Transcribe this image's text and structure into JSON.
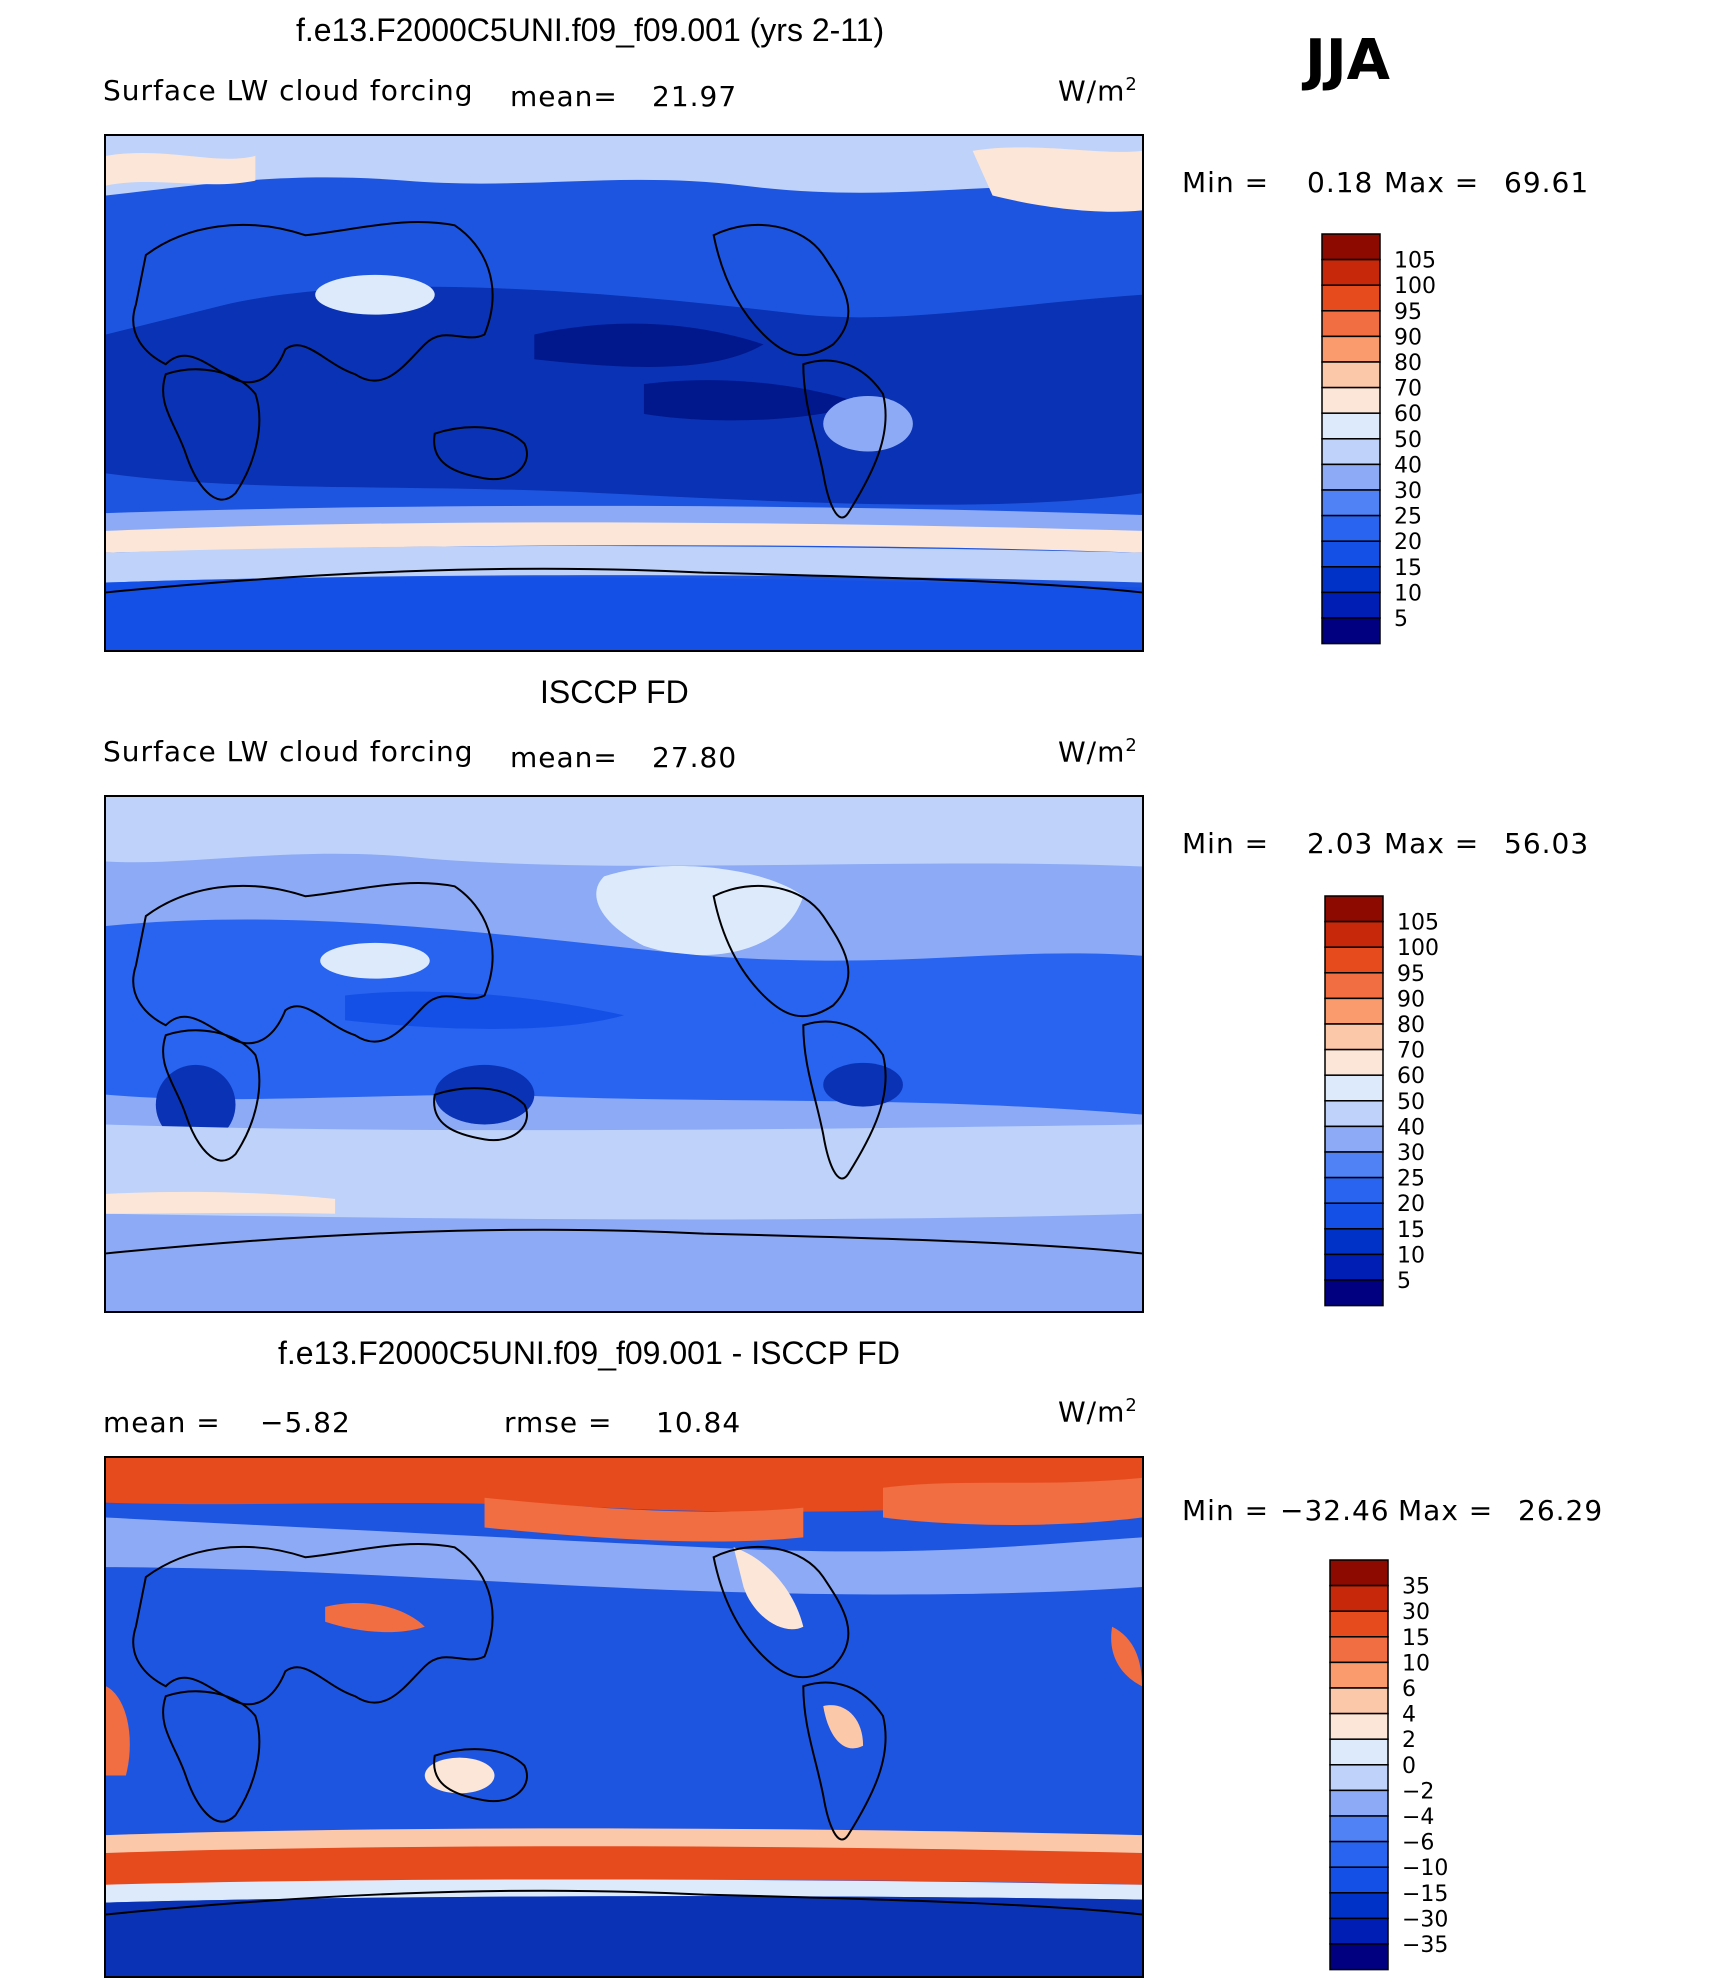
{
  "season": "JJA",
  "units_sup": "2",
  "panels": [
    {
      "title": "f.e13.F2000C5UNI.f09_f09.001 (yrs 2-11)",
      "variable": "Surface LW cloud forcing",
      "mean_label": "mean=",
      "mean": "21.97",
      "units": "W/m",
      "min_label": "Min =",
      "min": "0.18",
      "max_label": "Max =",
      "max": "69.61"
    },
    {
      "title": "ISCCP FD",
      "variable": "Surface LW cloud forcing",
      "mean_label": "mean=",
      "mean": "27.80",
      "units": "W/m",
      "min_label": "Min =",
      "min": "2.03",
      "max_label": "Max =",
      "max": "56.03"
    },
    {
      "title": "f.e13.F2000C5UNI.f09_f09.001 - ISCCP FD",
      "mean_label": "mean =",
      "mean": "−5.82",
      "rmse_label": "rmse =",
      "rmse": "10.84",
      "units": "W/m",
      "min_label": "Min =",
      "min": "−32.46",
      "max_label": "Max =",
      "max": "26.29"
    }
  ],
  "chart_data": [
    {
      "type": "heatmap",
      "title": "f.e13.F2000C5UNI.f09_f09.001 (yrs 2-11)",
      "subtitle": "Surface LW cloud forcing",
      "units": "W/m2",
      "mean": 21.97,
      "min": 0.18,
      "max": 69.61,
      "levels": [
        5,
        10,
        15,
        20,
        25,
        30,
        40,
        50,
        60,
        70,
        80,
        90,
        95,
        100,
        105
      ],
      "colors": [
        "#000080",
        "#001eb4",
        "#0032c8",
        "#1450e6",
        "#2864f0",
        "#5082f5",
        "#8caaf5",
        "#bed2fa",
        "#dceafc",
        "#fce6d7",
        "#fcc8aa",
        "#fa9b6e",
        "#f06e41",
        "#e64b1e",
        "#c8280a",
        "#8c0a00"
      ]
    },
    {
      "type": "heatmap",
      "title": "ISCCP FD",
      "subtitle": "Surface LW cloud forcing",
      "units": "W/m2",
      "mean": 27.8,
      "min": 2.03,
      "max": 56.03,
      "levels": [
        5,
        10,
        15,
        20,
        25,
        30,
        40,
        50,
        60,
        70,
        80,
        90,
        95,
        100,
        105
      ],
      "colors": [
        "#000080",
        "#001eb4",
        "#0032c8",
        "#1450e6",
        "#2864f0",
        "#5082f5",
        "#8caaf5",
        "#bed2fa",
        "#dceafc",
        "#fce6d7",
        "#fcc8aa",
        "#fa9b6e",
        "#f06e41",
        "#e64b1e",
        "#c8280a",
        "#8c0a00"
      ]
    },
    {
      "type": "heatmap",
      "title": "f.e13.F2000C5UNI.f09_f09.001 - ISCCP FD",
      "units": "W/m2",
      "mean": -5.82,
      "rmse": 10.84,
      "min": -32.46,
      "max": 26.29,
      "levels": [
        -35,
        -30,
        -15,
        -10,
        -6,
        -4,
        -2,
        0,
        2,
        4,
        6,
        10,
        15,
        30,
        35
      ],
      "level_labels": [
        "−35",
        "−30",
        "−15",
        "−10",
        "−6",
        "−4",
        "−2",
        "0",
        "2",
        "4",
        "6",
        "10",
        "15",
        "30",
        "35"
      ],
      "colors": [
        "#000080",
        "#001eb4",
        "#0032c8",
        "#1450e6",
        "#2864f0",
        "#5082f5",
        "#8caaf5",
        "#bed2fa",
        "#dceafc",
        "#fce6d7",
        "#fcc8aa",
        "#fa9b6e",
        "#f06e41",
        "#e64b1e",
        "#c8280a",
        "#8c0a00"
      ]
    }
  ]
}
